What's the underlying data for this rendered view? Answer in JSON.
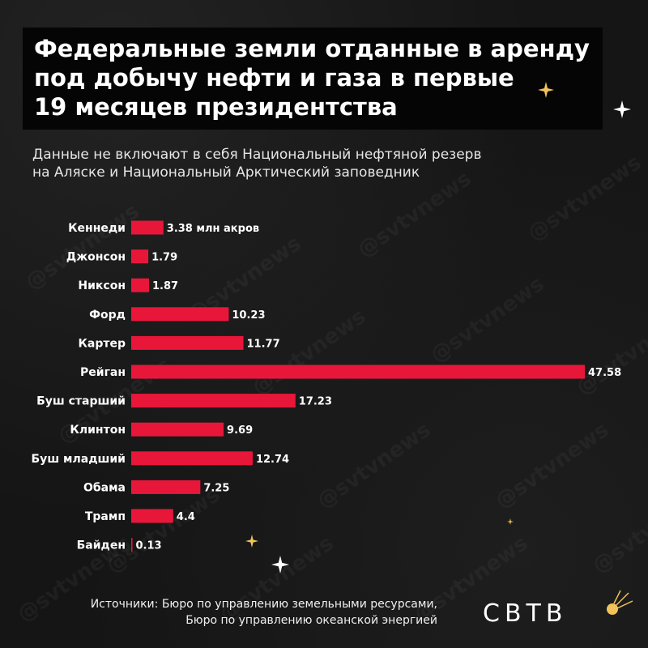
{
  "title_lines": [
    "Федеральные земли отданные в аренду",
    "под добычу нефти и газа в первые",
    "19 месяцев президентства"
  ],
  "subtitle_lines": [
    "Данные не включают в себя Национальный нефтяной резерв",
    "на Аляске и Национальный Арктический заповедник"
  ],
  "source_lines": [
    "Источники: Бюро по управлению земельными ресурсами,",
    "Бюро по управлению океанской энергией"
  ],
  "logo_text": "СВТВ",
  "watermark_text": "@svtvnews",
  "colors": {
    "bar": "#e8173a",
    "background": "#151515",
    "title_box": "#050505",
    "text": "#ffffff",
    "star": "#f2c35b"
  },
  "chart_data": {
    "type": "bar",
    "orientation": "horizontal",
    "categories": [
      "Кеннеди",
      "Джонсон",
      "Никсон",
      "Форд",
      "Картер",
      "Рейган",
      "Буш старший",
      "Клинтон",
      "Буш младший",
      "Обама",
      "Трамп",
      "Байден"
    ],
    "values": [
      3.38,
      1.79,
      1.87,
      10.23,
      11.77,
      47.58,
      17.23,
      9.69,
      12.74,
      7.25,
      4.4,
      0.13
    ],
    "value_labels": [
      "3.38 млн акров",
      "1.79",
      "1.87",
      "10.23",
      "11.77",
      "47.58",
      "17.23",
      "9.69",
      "12.74",
      "7.25",
      "4.4",
      "0.13"
    ],
    "xlim": [
      0,
      47.58
    ],
    "grid": false,
    "legend": "none"
  }
}
